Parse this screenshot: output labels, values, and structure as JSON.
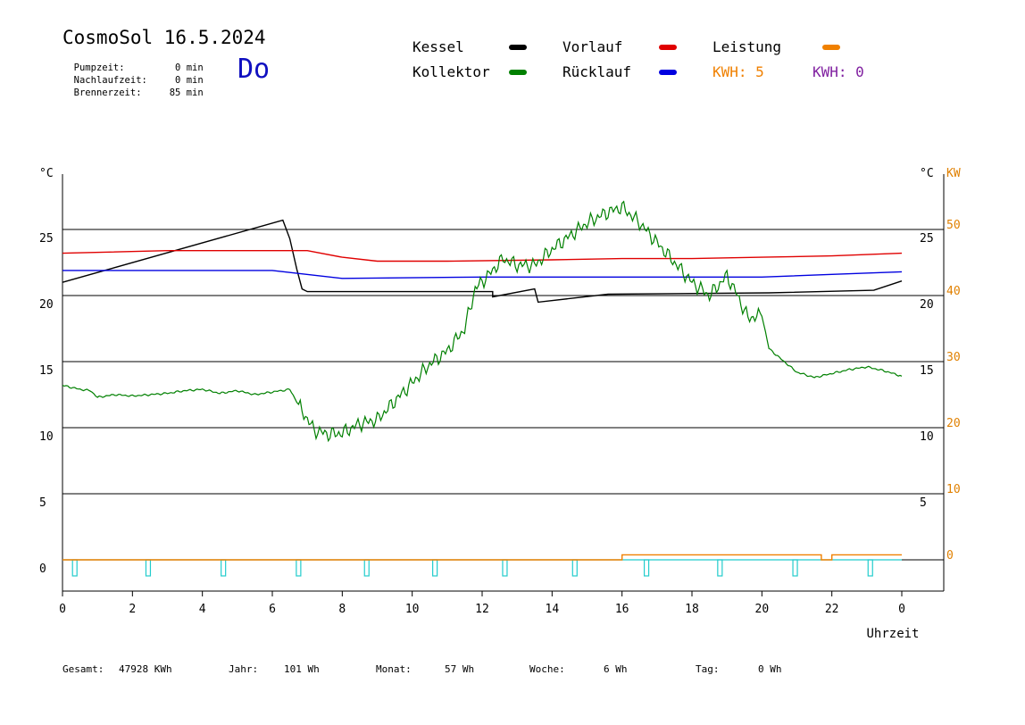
{
  "header": {
    "title": "CosmoSol 16.5.2024",
    "day": "Do",
    "info": [
      {
        "label": "Pumpzeit:",
        "value": "0 min"
      },
      {
        "label": "Nachlaufzeit:",
        "value": "0 min"
      },
      {
        "label": "Brennerzeit:",
        "value": "85 min"
      }
    ]
  },
  "legend": {
    "kessel": {
      "label": "Kessel",
      "color": "#000000"
    },
    "kollektor": {
      "label": "Kollektor",
      "color": "#008000"
    },
    "vorlauf": {
      "label": "Vorlauf",
      "color": "#e00000"
    },
    "ruecklauf": {
      "label": "Rücklauf",
      "color": "#0000e0"
    },
    "leistung": {
      "label": "Leistung",
      "color": "#f08000"
    },
    "kwh1": "KWH: 5",
    "kwh2": "KWH: 0",
    "kwh1_color": "#f08000",
    "kwh2_color": "#8020a0"
  },
  "footer": {
    "gesamt_label": "Gesamt:",
    "gesamt_value": "47928 KWh",
    "jahr_label": "Jahr:",
    "jahr_value": "101 Wh",
    "monat_label": "Monat:",
    "monat_value": "57 Wh",
    "woche_label": "Woche:",
    "woche_value": "6 Wh",
    "tag_label": "Tag:",
    "tag_value": "0 Wh"
  },
  "chart_data": {
    "type": "line",
    "xlabel": "Uhrzeit",
    "ylabel_left": "°C",
    "ylabel_right_temp": "°C",
    "ylabel_right_power": "KW",
    "x_ticks": [
      "0",
      "2",
      "4",
      "6",
      "8",
      "10",
      "12",
      "14",
      "16",
      "18",
      "20",
      "22",
      "0"
    ],
    "xlim": [
      0,
      24
    ],
    "ylim": [
      -2.5,
      29
    ],
    "y_ticks_left": [
      0,
      5,
      10,
      15,
      20,
      25
    ],
    "y_ticks_right_temp": [
      5,
      10,
      15,
      20,
      25
    ],
    "y_ticks_right_power": [
      0,
      10,
      20,
      30,
      40,
      50
    ],
    "grid_y": [
      5,
      10,
      15,
      20,
      25
    ],
    "series": [
      {
        "name": "Kessel",
        "color": "#000000",
        "points": [
          [
            0,
            21
          ],
          [
            6.3,
            25.7
          ],
          [
            6.5,
            24.3
          ],
          [
            6.7,
            22
          ],
          [
            6.85,
            20.5
          ],
          [
            7,
            20.3
          ],
          [
            12.3,
            20.3
          ],
          [
            12.3,
            19.9
          ],
          [
            13.5,
            20.5
          ],
          [
            13.6,
            19.5
          ],
          [
            15.6,
            20.1
          ],
          [
            20.2,
            20.2
          ],
          [
            23.2,
            20.4
          ],
          [
            24,
            21.1
          ]
        ]
      },
      {
        "name": "Vorlauf",
        "color": "#e00000",
        "points": [
          [
            0,
            23.2
          ],
          [
            3,
            23.4
          ],
          [
            7,
            23.4
          ],
          [
            8,
            22.9
          ],
          [
            9,
            22.6
          ],
          [
            11,
            22.6
          ],
          [
            14,
            22.7
          ],
          [
            16,
            22.8
          ],
          [
            18,
            22.8
          ],
          [
            20,
            22.9
          ],
          [
            22,
            23.0
          ],
          [
            24,
            23.2
          ]
        ]
      },
      {
        "name": "Rücklauf",
        "color": "#0000e0",
        "points": [
          [
            0,
            21.9
          ],
          [
            6,
            21.9
          ],
          [
            8,
            21.3
          ],
          [
            12,
            21.4
          ],
          [
            16,
            21.4
          ],
          [
            20,
            21.4
          ],
          [
            22,
            21.6
          ],
          [
            24,
            21.8
          ]
        ]
      },
      {
        "name": "Kollektor",
        "color": "#008000",
        "points": [
          [
            0,
            13.2
          ],
          [
            0.5,
            12.9
          ],
          [
            0.8,
            12.8
          ],
          [
            1,
            12.3
          ],
          [
            1.5,
            12.5
          ],
          [
            2,
            12.4
          ],
          [
            2.5,
            12.5
          ],
          [
            3,
            12.6
          ],
          [
            3.5,
            12.8
          ],
          [
            4,
            12.9
          ],
          [
            4.5,
            12.6
          ],
          [
            5,
            12.8
          ],
          [
            5.5,
            12.5
          ],
          [
            6,
            12.7
          ],
          [
            6.5,
            12.9
          ],
          [
            6.8,
            11.5
          ],
          [
            7.2,
            9.8
          ],
          [
            7.6,
            9.5
          ],
          [
            8,
            9.6
          ],
          [
            8.5,
            10.3
          ],
          [
            9,
            10.6
          ],
          [
            9.5,
            12
          ],
          [
            10,
            13.4
          ],
          [
            10.5,
            14.8
          ],
          [
            11,
            15.8
          ],
          [
            11.5,
            17.5
          ],
          [
            11.8,
            20.5
          ],
          [
            12.2,
            21.6
          ],
          [
            12.6,
            22.8
          ],
          [
            13,
            22.3
          ],
          [
            13.5,
            22.3
          ],
          [
            14,
            23.5
          ],
          [
            14.5,
            24.5
          ],
          [
            15,
            25.5
          ],
          [
            15.5,
            26.2
          ],
          [
            16,
            26.7
          ],
          [
            16.5,
            25.5
          ],
          [
            17,
            24
          ],
          [
            17.5,
            22.5
          ],
          [
            18,
            21
          ],
          [
            18.5,
            20
          ],
          [
            19,
            21.5
          ],
          [
            19.3,
            20
          ],
          [
            19.6,
            18.3
          ],
          [
            20,
            18.5
          ],
          [
            20.2,
            16
          ],
          [
            20.5,
            15.3
          ],
          [
            21,
            14.2
          ],
          [
            21.5,
            13.8
          ],
          [
            22,
            14.1
          ],
          [
            22.5,
            14.4
          ],
          [
            23,
            14.6
          ],
          [
            23.5,
            14.3
          ],
          [
            24,
            13.9
          ]
        ]
      },
      {
        "name": "Leistung",
        "color": "#f08000",
        "points": [
          [
            0,
            0
          ],
          [
            16,
            0
          ],
          [
            16,
            0.4
          ],
          [
            21.7,
            0.4
          ],
          [
            21.7,
            0
          ],
          [
            22,
            0
          ],
          [
            22,
            0.4
          ],
          [
            24,
            0.4
          ]
        ]
      }
    ],
    "pump_pulses_x": [
      0.35,
      2.45,
      4.6,
      6.75,
      8.7,
      10.65,
      12.65,
      14.65,
      16.7,
      18.8,
      20.95,
      23.1
    ]
  }
}
